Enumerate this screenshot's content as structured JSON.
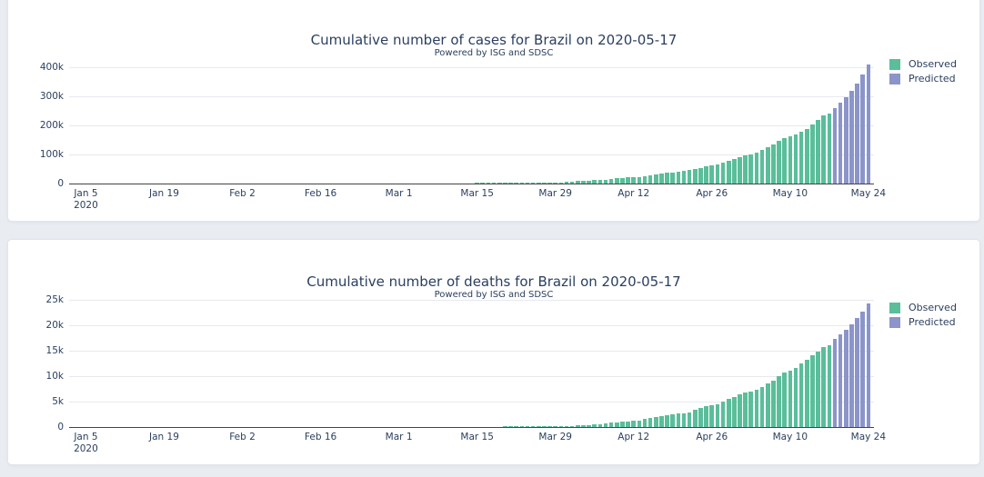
{
  "page": {
    "background": "#e9edf2"
  },
  "colors": {
    "observed": "#5abe9a",
    "predicted": "#8b95c9",
    "text": "#2a3f5f",
    "grid": "#e6e9ef",
    "axis": "#444449",
    "panel_background": "#ffffff",
    "panel_border": "#e0e4eb"
  },
  "chart_data": [
    {
      "type": "bar",
      "title": "Cumulative number of cases for Brazil on 2020-05-17",
      "subtitle": "Powered by ISG and SDSC",
      "xlabel": "",
      "ylabel": "",
      "ylim": [
        0,
        425000
      ],
      "grid": true,
      "legend_position": "top-right",
      "y_ticks": [
        {
          "value": 0,
          "label": "0"
        },
        {
          "value": 100000,
          "label": "100k"
        },
        {
          "value": 200000,
          "label": "200k"
        },
        {
          "value": 300000,
          "label": "300k"
        },
        {
          "value": 400000,
          "label": "400k"
        }
      ],
      "x_range": [
        "2020-01-02",
        "2020-05-25"
      ],
      "x_ticks": [
        {
          "date": "2020-01-05",
          "label": "Jan 5",
          "sublabel": "2020"
        },
        {
          "date": "2020-01-19",
          "label": "Jan 19"
        },
        {
          "date": "2020-02-02",
          "label": "Feb 2"
        },
        {
          "date": "2020-02-16",
          "label": "Feb 16"
        },
        {
          "date": "2020-03-01",
          "label": "Mar 1"
        },
        {
          "date": "2020-03-15",
          "label": "Mar 15"
        },
        {
          "date": "2020-03-29",
          "label": "Mar 29"
        },
        {
          "date": "2020-04-12",
          "label": "Apr 12"
        },
        {
          "date": "2020-04-26",
          "label": "Apr 26"
        },
        {
          "date": "2020-05-10",
          "label": "May 10"
        },
        {
          "date": "2020-05-24",
          "label": "May 24"
        }
      ],
      "series": [
        {
          "name": "Observed",
          "color_key": "observed",
          "start_date": "2020-02-26",
          "values": [
            1,
            1,
            1,
            2,
            2,
            2,
            2,
            4,
            4,
            13,
            13,
            20,
            25,
            31,
            38,
            52,
            151,
            151,
            162,
            200,
            321,
            372,
            621,
            793,
            1021,
            1546,
            1924,
            2247,
            2554,
            2985,
            3417,
            3904,
            4256,
            4579,
            5717,
            6836,
            8044,
            9056,
            10360,
            11130,
            12161,
            14034,
            16170,
            18092,
            19638,
            20727,
            22192,
            23430,
            25262,
            28320,
            30425,
            33682,
            36658,
            38654,
            40743,
            43079,
            45757,
            50036,
            52995,
            58509,
            61888,
            66501,
            71886,
            78162,
            85380,
            91589,
            96559,
            101147,
            107780,
            114715,
            125218,
            135106,
            145328,
            155939,
            162699,
            168331,
            177589,
            188974,
            202918,
            218223,
            233142,
            241080
          ]
        },
        {
          "name": "Predicted",
          "color_key": "predicted",
          "start_date": "2020-05-18",
          "values": [
            258000,
            277000,
            297000,
            318000,
            343000,
            375000,
            410000
          ]
        }
      ]
    },
    {
      "type": "bar",
      "title": "Cumulative number of deaths for Brazil on 2020-05-17",
      "subtitle": "Powered by ISG and SDSC",
      "xlabel": "",
      "ylabel": "",
      "ylim": [
        0,
        26200
      ],
      "grid": true,
      "legend_position": "top-right",
      "y_ticks": [
        {
          "value": 0,
          "label": "0"
        },
        {
          "value": 5000,
          "label": "5k"
        },
        {
          "value": 10000,
          "label": "10k"
        },
        {
          "value": 15000,
          "label": "15k"
        },
        {
          "value": 20000,
          "label": "20k"
        },
        {
          "value": 25000,
          "label": "25k"
        }
      ],
      "x_range": [
        "2020-01-02",
        "2020-05-25"
      ],
      "x_ticks": [
        {
          "date": "2020-01-05",
          "label": "Jan 5",
          "sublabel": "2020"
        },
        {
          "date": "2020-01-19",
          "label": "Jan 19"
        },
        {
          "date": "2020-02-02",
          "label": "Feb 2"
        },
        {
          "date": "2020-02-16",
          "label": "Feb 16"
        },
        {
          "date": "2020-03-01",
          "label": "Mar 1"
        },
        {
          "date": "2020-03-15",
          "label": "Mar 15"
        },
        {
          "date": "2020-03-29",
          "label": "Mar 29"
        },
        {
          "date": "2020-04-12",
          "label": "Apr 12"
        },
        {
          "date": "2020-04-26",
          "label": "Apr 26"
        },
        {
          "date": "2020-05-10",
          "label": "May 10"
        },
        {
          "date": "2020-05-24",
          "label": "May 24"
        }
      ],
      "series": [
        {
          "name": "Observed",
          "color_key": "observed",
          "start_date": "2020-03-17",
          "values": [
            1,
            3,
            6,
            11,
            15,
            25,
            34,
            46,
            59,
            77,
            92,
            111,
            136,
            159,
            201,
            240,
            324,
            359,
            445,
            486,
            564,
            686,
            819,
            950,
            1057,
            1124,
            1223,
            1328,
            1532,
            1736,
            1924,
            2141,
            2354,
            2462,
            2587,
            2741,
            2906,
            3331,
            3704,
            4016,
            4205,
            4543,
            5017,
            5466,
            5901,
            6329,
            6750,
            7025,
            7321,
            7921,
            8536,
            9146,
            9897,
            10627,
            11123,
            11519,
            12400,
            13149,
            13993,
            14817,
            15633,
            16118
          ]
        },
        {
          "name": "Predicted",
          "color_key": "predicted",
          "start_date": "2020-05-18",
          "values": [
            17200,
            18150,
            19150,
            20200,
            21350,
            22650,
            24300
          ]
        }
      ]
    }
  ]
}
